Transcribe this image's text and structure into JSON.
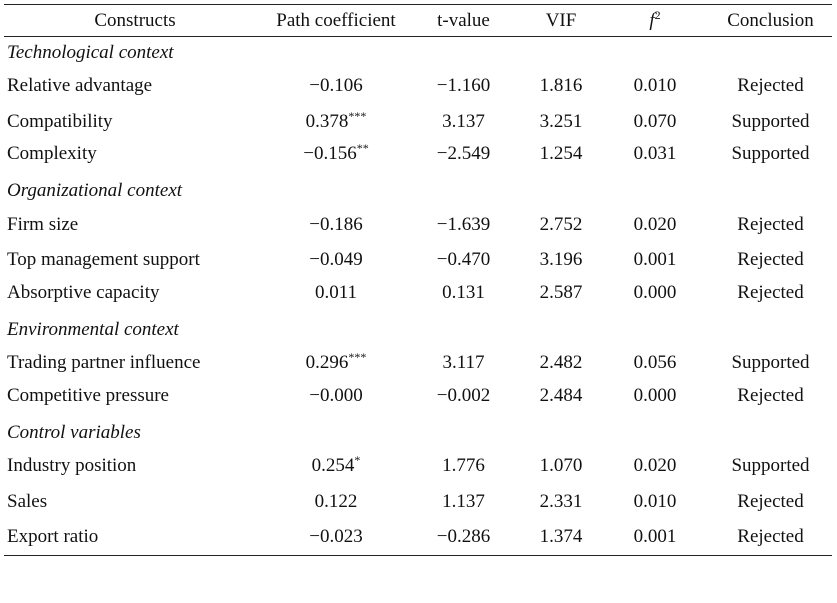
{
  "headers": {
    "constructs": "Constructs",
    "path": "Path coefficient",
    "t": "t-value",
    "vif": "VIF",
    "f2_base": "f",
    "f2_sup": "2",
    "conclusion": "Conclusion"
  },
  "groups": [
    {
      "title": "Technological context",
      "rows": [
        {
          "construct": "Relative advantage",
          "path": "−0.106",
          "sig": "",
          "t": "−1.160",
          "vif": "1.816",
          "f2": "0.010",
          "conclusion": "Rejected"
        },
        {
          "construct": "Compatibility",
          "path": "0.378",
          "sig": "***",
          "t": "3.137",
          "vif": "3.251",
          "f2": "0.070",
          "conclusion": "Supported"
        },
        {
          "construct": "Complexity",
          "path": "−0.156",
          "sig": "**",
          "t": "−2.549",
          "vif": "1.254",
          "f2": "0.031",
          "conclusion": "Supported"
        }
      ]
    },
    {
      "title": "Organizational context",
      "rows": [
        {
          "construct": "Firm size",
          "path": "−0.186",
          "sig": "",
          "t": "−1.639",
          "vif": "2.752",
          "f2": "0.020",
          "conclusion": "Rejected"
        },
        {
          "construct": "Top management support",
          "path": "−0.049",
          "sig": "",
          "t": "−0.470",
          "vif": "3.196",
          "f2": "0.001",
          "conclusion": "Rejected"
        },
        {
          "construct": "Absorptive capacity",
          "path": "0.011",
          "sig": "",
          "t": "0.131",
          "vif": "2.587",
          "f2": "0.000",
          "conclusion": "Rejected"
        }
      ]
    },
    {
      "title": "Environmental context",
      "rows": [
        {
          "construct": "Trading partner influence",
          "path": "0.296",
          "sig": "***",
          "t": "3.117",
          "vif": "2.482",
          "f2": "0.056",
          "conclusion": "Supported"
        },
        {
          "construct": "Competitive pressure",
          "path": "−0.000",
          "sig": "",
          "t": "−0.002",
          "vif": "2.484",
          "f2": "0.000",
          "conclusion": "Rejected"
        }
      ]
    },
    {
      "title": "Control variables",
      "rows": [
        {
          "construct": "Industry position",
          "path": "0.254",
          "sig": "*",
          "t": "1.776",
          "vif": "1.070",
          "f2": "0.020",
          "conclusion": "Supported"
        },
        {
          "construct": "Sales",
          "path": "0.122",
          "sig": "",
          "t": "1.137",
          "vif": "2.331",
          "f2": "0.010",
          "conclusion": "Rejected"
        },
        {
          "construct": "Export ratio",
          "path": "−0.023",
          "sig": "",
          "t": "−0.286",
          "vif": "1.374",
          "f2": "0.001",
          "conclusion": "Rejected"
        }
      ]
    }
  ]
}
